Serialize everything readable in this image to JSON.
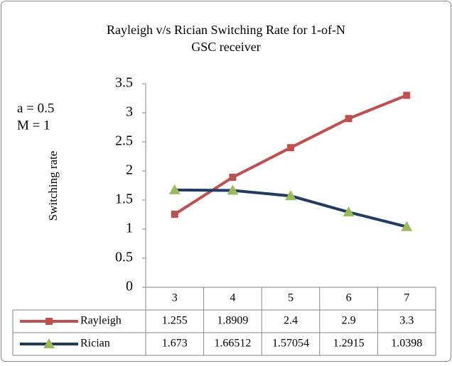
{
  "chart_data": {
    "type": "line",
    "title": [
      "Rayleigh v/s Rician Switching Rate  for  1-of-N",
      "GSC receiver"
    ],
    "annotations": [
      "a = 0.5",
      "M = 1"
    ],
    "y_label": "Switching rate",
    "categories": [
      "3",
      "4",
      "5",
      "6",
      "7"
    ],
    "series": [
      {
        "name": "Rayleigh",
        "color": "#c0504d",
        "marker": "square",
        "marker_color": "#c0504d",
        "values": [
          1.255,
          1.8909,
          2.4,
          2.9,
          3.3
        ]
      },
      {
        "name": "Rician",
        "color": "#1f3c64",
        "marker": "triangle",
        "marker_color": "#9bbb59",
        "values": [
          1.673,
          1.66512,
          1.57054,
          1.2915,
          1.0398
        ]
      }
    ],
    "ylim": [
      0,
      3.5
    ],
    "yticks": [
      0,
      0.5,
      1,
      1.5,
      2,
      2.5,
      3,
      3.5
    ],
    "grid": false,
    "data_table": true
  }
}
